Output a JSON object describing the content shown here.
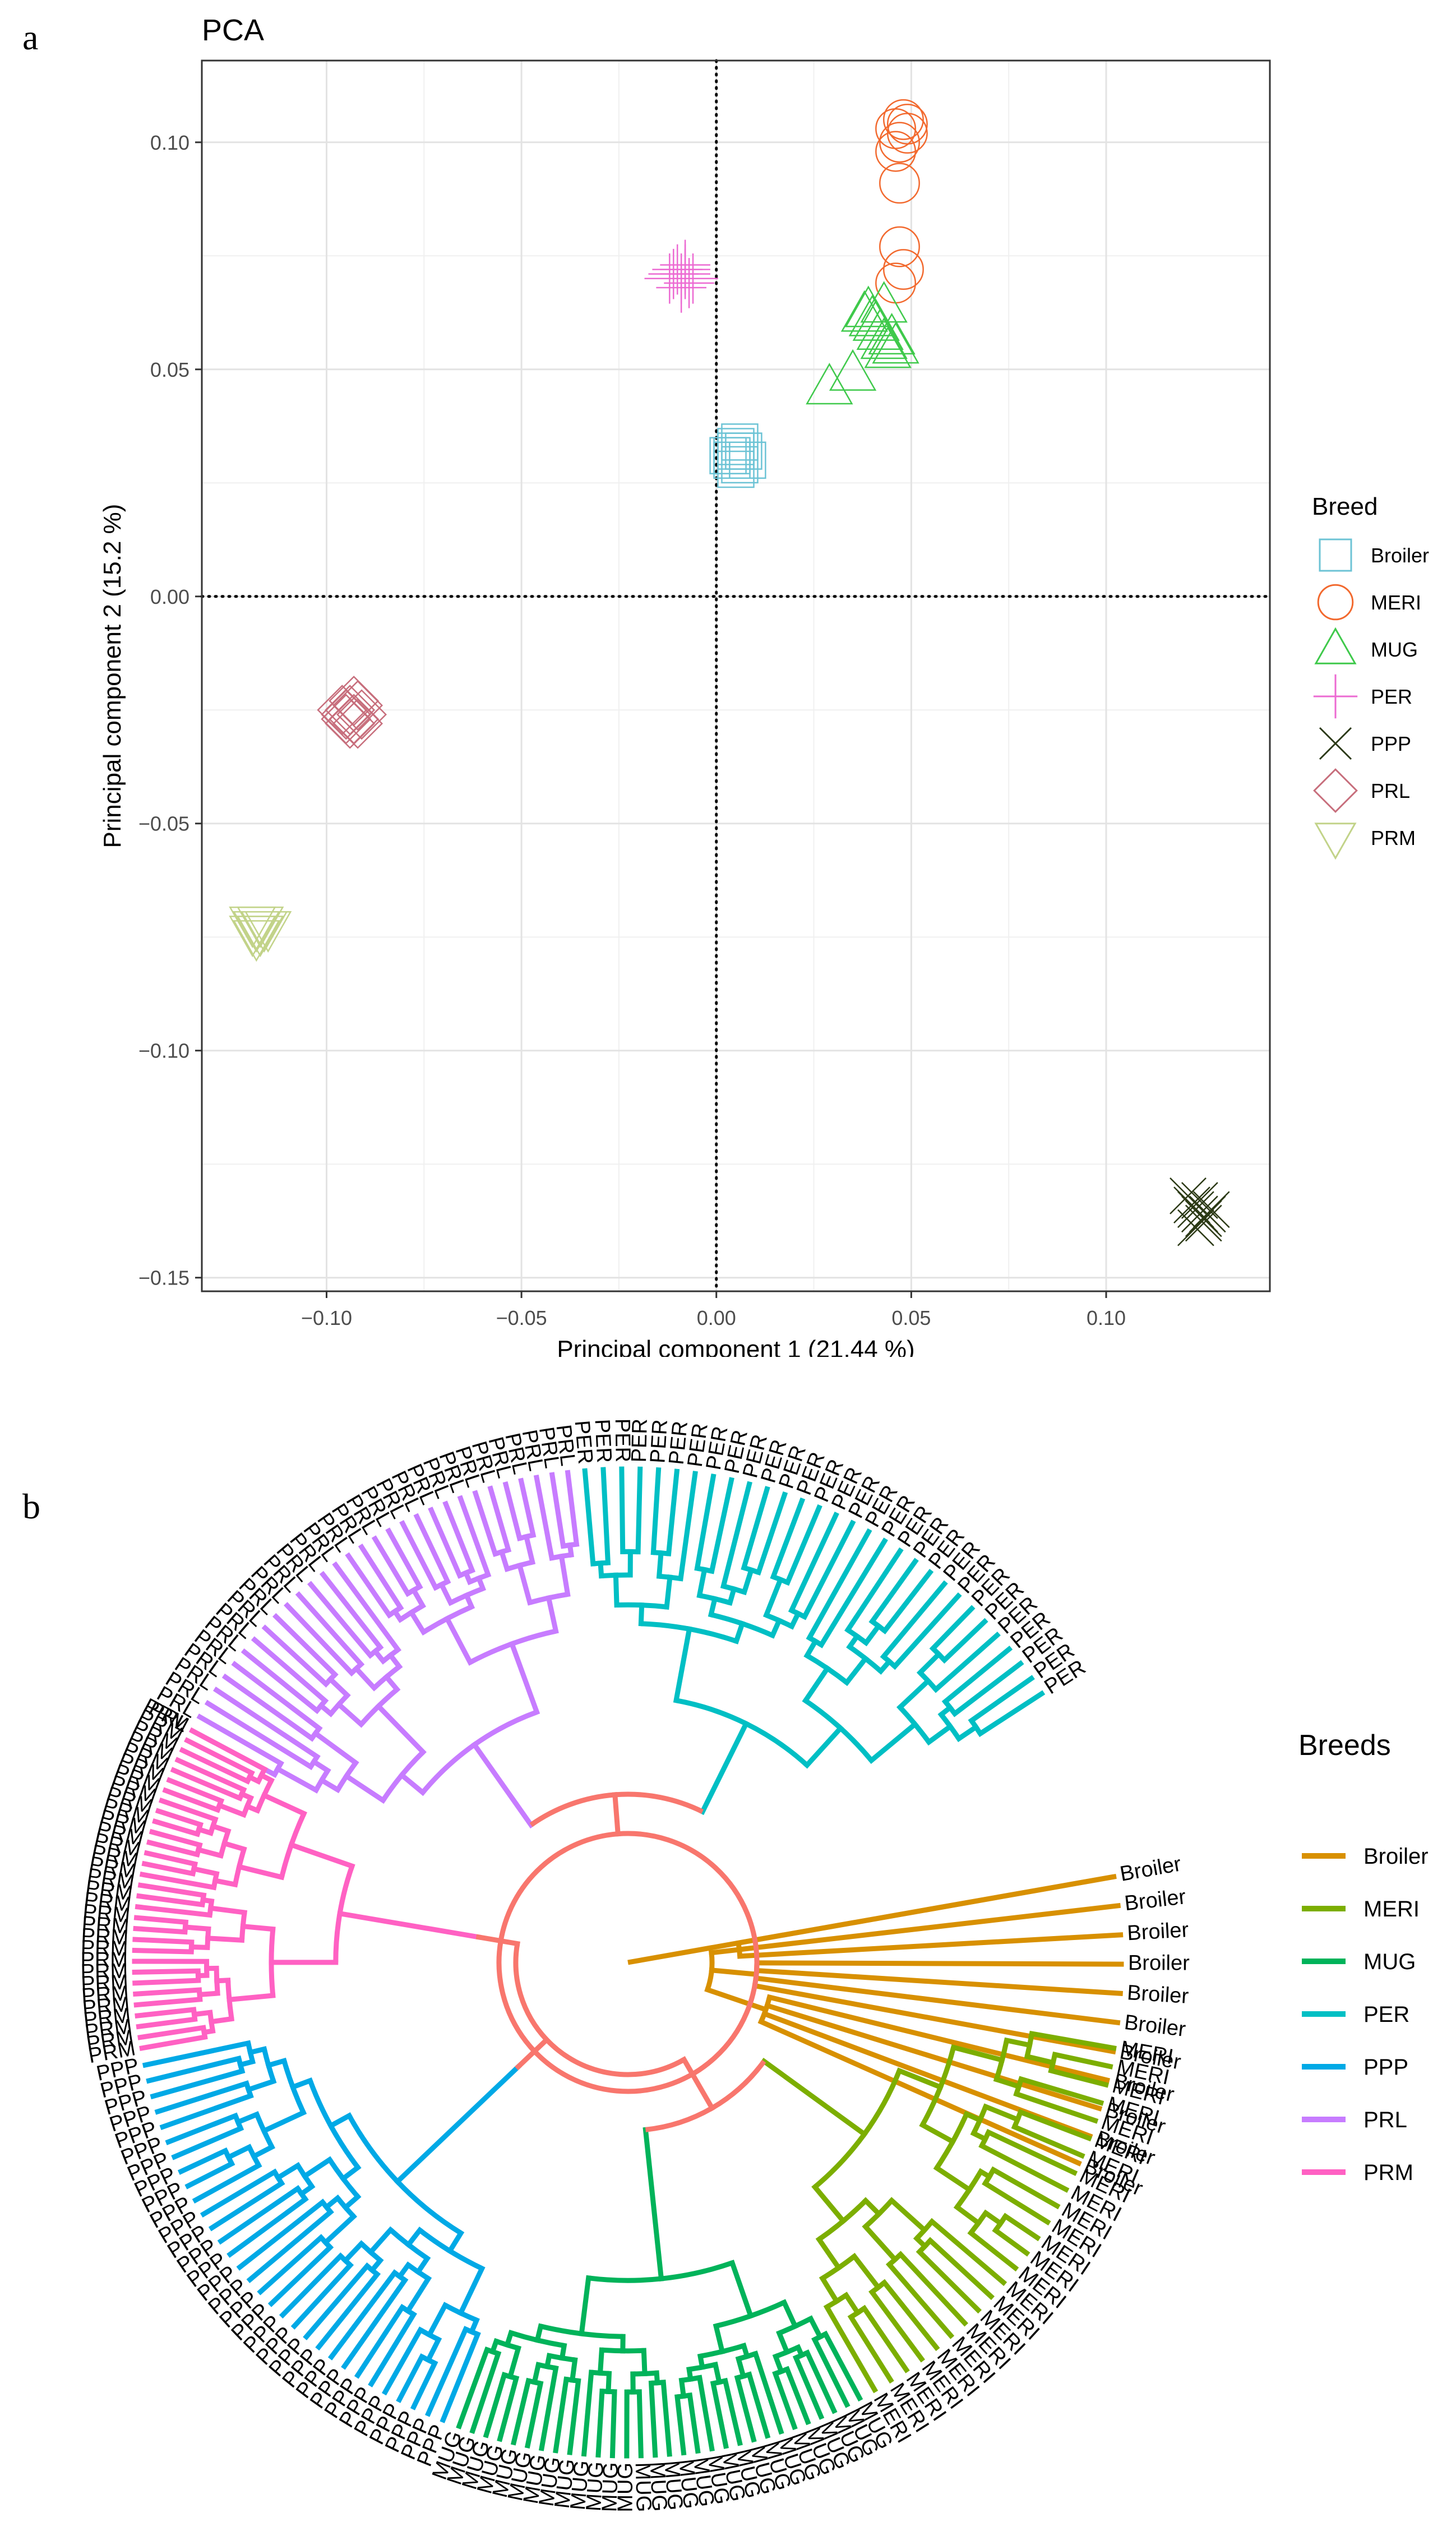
{
  "panel_a_label": "a",
  "panel_b_label": "b",
  "chart_data": [
    {
      "type": "scatter",
      "title": "PCA",
      "xlabel": "Principal component 1 (21.44 %)",
      "ylabel": "Principal component 2 (15.2 %)",
      "xlim": [
        -0.132,
        0.142
      ],
      "ylim": [
        -0.153,
        0.118
      ],
      "xticks": [
        -0.1,
        -0.05,
        0.0,
        0.05,
        0.1
      ],
      "xtick_labels": [
        "−0.10",
        "−0.05",
        "0.00",
        "0.05",
        "0.10"
      ],
      "yticks": [
        -0.15,
        -0.1,
        -0.05,
        0.0,
        0.05,
        0.1
      ],
      "ytick_labels": [
        "−0.15",
        "−0.10",
        "−0.05",
        "0.00",
        "0.05",
        "0.10"
      ],
      "reference_lines": {
        "x": 0,
        "y": 0,
        "style": "dotted"
      },
      "grid": true,
      "legend_title": "Breed",
      "legend_position": "right",
      "series": [
        {
          "name": "Broiler",
          "marker": "square",
          "color": "#6cc3d5",
          "points": [
            [
              0.003,
              0.031
            ],
            [
              0.005,
              0.033
            ],
            [
              0.006,
              0.029
            ],
            [
              0.004,
              0.03
            ],
            [
              0.007,
              0.032
            ],
            [
              0.005,
              0.028
            ],
            [
              0.006,
              0.034
            ],
            [
              0.004,
              0.031
            ],
            [
              0.008,
              0.03
            ],
            [
              0.005,
              0.032
            ]
          ]
        },
        {
          "name": "MERI",
          "marker": "circle",
          "color": "#f2692e",
          "points": [
            [
              0.046,
              0.103
            ],
            [
              0.048,
              0.105
            ],
            [
              0.047,
              0.1
            ],
            [
              0.049,
              0.102
            ],
            [
              0.046,
              0.098
            ],
            [
              0.047,
              0.091
            ],
            [
              0.047,
              0.077
            ],
            [
              0.048,
              0.072
            ],
            [
              0.046,
              0.069
            ],
            [
              0.049,
              0.104
            ]
          ]
        },
        {
          "name": "MUG",
          "marker": "triangle",
          "color": "#3fc94b",
          "points": [
            [
              0.04,
              0.061
            ],
            [
              0.042,
              0.058
            ],
            [
              0.043,
              0.056
            ],
            [
              0.039,
              0.063
            ],
            [
              0.044,
              0.054
            ],
            [
              0.041,
              0.06
            ],
            [
              0.045,
              0.057
            ],
            [
              0.038,
              0.062
            ],
            [
              0.035,
              0.049
            ],
            [
              0.029,
              0.046
            ],
            [
              0.043,
              0.064
            ],
            [
              0.046,
              0.055
            ]
          ]
        },
        {
          "name": "PER",
          "marker": "plus",
          "color": "#ec6ad2",
          "points": [
            [
              -0.009,
              0.07
            ],
            [
              -0.008,
              0.071
            ],
            [
              -0.01,
              0.072
            ],
            [
              -0.007,
              0.069
            ],
            [
              -0.011,
              0.071
            ],
            [
              -0.008,
              0.073
            ],
            [
              -0.009,
              0.068
            ],
            [
              -0.006,
              0.07
            ],
            [
              -0.012,
              0.07
            ],
            [
              -0.008,
              0.072
            ]
          ]
        },
        {
          "name": "PPP",
          "marker": "x",
          "color": "#2c3a16",
          "points": [
            [
              0.123,
              -0.135
            ],
            [
              0.125,
              -0.137
            ],
            [
              0.124,
              -0.133
            ],
            [
              0.126,
              -0.136
            ],
            [
              0.122,
              -0.134
            ],
            [
              0.125,
              -0.138
            ],
            [
              0.124,
              -0.136
            ],
            [
              0.127,
              -0.135
            ],
            [
              0.121,
              -0.132
            ],
            [
              0.123,
              -0.139
            ]
          ]
        },
        {
          "name": "PRL",
          "marker": "diamond",
          "color": "#c76e7c",
          "points": [
            [
              -0.094,
              -0.025
            ],
            [
              -0.093,
              -0.027
            ],
            [
              -0.095,
              -0.026
            ],
            [
              -0.092,
              -0.024
            ],
            [
              -0.094,
              -0.028
            ],
            [
              -0.091,
              -0.026
            ],
            [
              -0.096,
              -0.025
            ],
            [
              -0.093,
              -0.023
            ],
            [
              -0.092,
              -0.028
            ],
            [
              -0.095,
              -0.027
            ]
          ]
        },
        {
          "name": "PRM",
          "marker": "triangle-down",
          "color": "#c2d389",
          "points": [
            [
              -0.118,
              -0.073
            ],
            [
              -0.117,
              -0.074
            ],
            [
              -0.119,
              -0.072
            ],
            [
              -0.116,
              -0.073
            ],
            [
              -0.118,
              -0.075
            ],
            [
              -0.117,
              -0.072
            ],
            [
              -0.115,
              -0.073
            ],
            [
              -0.119,
              -0.074
            ]
          ]
        }
      ]
    },
    {
      "type": "dendrogram",
      "layout": "circular",
      "legend_title": "Breeds",
      "legend_position": "right",
      "root_color": "#f8766d",
      "clades": [
        {
          "name": "Broiler",
          "color": "#d89000",
          "leaf_label": "Broiler",
          "leaf_count": 11,
          "start_deg": -10,
          "end_deg": 24
        },
        {
          "name": "MERI",
          "color": "#7cae00",
          "leaf_label": "MERI",
          "leaf_count": 24,
          "start_deg": 10,
          "end_deg": 60
        },
        {
          "name": "MUG",
          "color": "#00b35a",
          "leaf_label": "MUG",
          "leaf_count": 30,
          "start_deg": 62,
          "end_deg": 110
        },
        {
          "name": "PER",
          "color": "#00bfc4",
          "leaf_label": "PER",
          "leaf_count": 30,
          "start_deg": -95,
          "end_deg": -33
        },
        {
          "name": "PPP",
          "color": "#00a9e6",
          "leaf_label": "PPP",
          "leaf_count": 31,
          "start_deg": 112,
          "end_deg": 168
        },
        {
          "name": "PRL",
          "color": "#c77cff",
          "leaf_label": "PRL",
          "leaf_count": 31,
          "start_deg": -152,
          "end_deg": -97
        },
        {
          "name": "PRM",
          "color": "#ff61c3",
          "leaf_label": "PRM",
          "leaf_count": 31,
          "start_deg": 170,
          "end_deg": 208
        }
      ]
    }
  ]
}
